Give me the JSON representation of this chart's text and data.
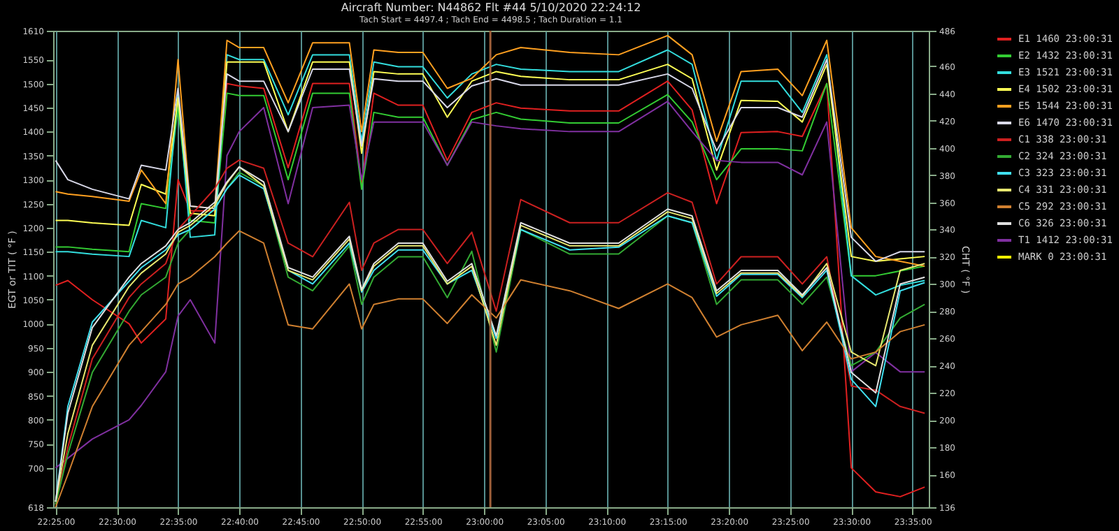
{
  "chart_data": {
    "type": "line",
    "title": "Aircraft Number: N44862 Flt #44 5/10/2020 22:24:12",
    "subtitle": "Tach Start = 4497.4 ; Tach End = 4498.5 ; Tach Duration = 1.1",
    "ylabel": "EGT or TIT ( °F )",
    "y2label": "CHT ( °F )",
    "x": [
      "2020-05-10T22:25",
      "2020-05-10T22:26",
      "2020-05-10T22:28",
      "2020-05-10T22:31",
      "2020-05-10T22:32",
      "2020-05-10T22:34",
      "2020-05-10T22:35",
      "2020-05-10T22:36",
      "2020-05-10T22:38",
      "2020-05-10T22:39",
      "2020-05-10T22:40",
      "2020-05-10T22:42",
      "2020-05-10T22:44",
      "2020-05-10T22:46",
      "2020-05-10T22:49",
      "2020-05-10T22:50",
      "2020-05-10T22:51",
      "2020-05-10T22:53",
      "2020-05-10T22:55",
      "2020-05-10T22:57",
      "2020-05-10T22:59",
      "2020-05-10T23:01",
      "2020-05-10T23:03",
      "2020-05-10T23:07",
      "2020-05-10T23:11",
      "2020-05-10T23:15",
      "2020-05-10T23:17",
      "2020-05-10T23:19",
      "2020-05-10T23:21",
      "2020-05-10T23:24",
      "2020-05-10T23:26",
      "2020-05-10T23:28",
      "2020-05-10T23:30",
      "2020-05-10T23:32",
      "2020-05-10T23:34",
      "2020-05-10T23:36"
    ],
    "xlim": [
      "2020-05-10T22:24:48",
      "2020-05-10T23:36:20"
    ],
    "xticks": [
      {
        "value": "2020-05-10T22:25",
        "label": "22:25:00"
      },
      {
        "value": "2020-05-10T22:30",
        "label": "22:30:00"
      },
      {
        "value": "2020-05-10T22:35",
        "label": "22:35:00"
      },
      {
        "value": "2020-05-10T22:40",
        "label": "22:40:00"
      },
      {
        "value": "2020-05-10T22:45",
        "label": "22:45:00"
      },
      {
        "value": "2020-05-10T22:50",
        "label": "22:50:00"
      },
      {
        "value": "2020-05-10T22:55",
        "label": "22:55:00"
      },
      {
        "value": "2020-05-10T23:00",
        "label": "23:00:00"
      },
      {
        "value": "2020-05-10T23:05",
        "label": "23:05:00"
      },
      {
        "value": "2020-05-10T23:10",
        "label": "23:10:00"
      },
      {
        "value": "2020-05-10T23:15",
        "label": "23:15:00"
      },
      {
        "value": "2020-05-10T23:20",
        "label": "23:20:00"
      },
      {
        "value": "2020-05-10T23:25",
        "label": "23:25:00"
      },
      {
        "value": "2020-05-10T23:30",
        "label": "23:30:00"
      },
      {
        "value": "2020-05-10T23:35",
        "label": "23:35:00"
      }
    ],
    "ylim": [
      618,
      1610
    ],
    "yticks": [
      618,
      700,
      750,
      800,
      850,
      900,
      950,
      1000,
      1050,
      1100,
      1150,
      1200,
      1250,
      1300,
      1350,
      1400,
      1450,
      1500,
      1550,
      1610
    ],
    "y2lim": [
      136,
      486
    ],
    "y2ticks": [
      136,
      160,
      180,
      200,
      220,
      240,
      260,
      280,
      300,
      320,
      340,
      360,
      380,
      400,
      420,
      440,
      460,
      486
    ],
    "grid": "x",
    "legend": "right",
    "ref_lines": [
      {
        "axis": "x",
        "value": "2020-05-10T23:00:31",
        "color": "#a0603a"
      }
    ],
    "series": [
      {
        "name": "E1 1460 23:00:31",
        "color": "#e02020",
        "values": [
          1080,
          1090,
          1050,
          1000,
          960,
          1010,
          1300,
          1235,
          1235,
          1500,
          1495,
          1490,
          1325,
          1500,
          1500,
          1290,
          1480,
          1455,
          1455,
          1340,
          1440,
          1460,
          1449,
          1443,
          1443,
          1505,
          1445,
          1250,
          1398,
          1400,
          1390,
          1500,
          700,
          650,
          640,
          660
        ]
      },
      {
        "name": "E2 1432 23:00:31",
        "color": "#33cc33",
        "values": [
          1160,
          1160,
          1155,
          1150,
          1250,
          1240,
          1450,
          1215,
          1210,
          1480,
          1475,
          1475,
          1300,
          1480,
          1480,
          1280,
          1440,
          1430,
          1430,
          1330,
          1425,
          1440,
          1426,
          1418,
          1418,
          1477,
          1420,
          1300,
          1364,
          1364,
          1360,
          1500,
          1100,
          1100,
          1110,
          1120
        ]
      },
      {
        "name": "E3 1521 23:00:31",
        "color": "#33dddd",
        "values": [
          1150,
          1150,
          1145,
          1140,
          1215,
          1200,
          1480,
          1180,
          1185,
          1560,
          1550,
          1550,
          1435,
          1560,
          1560,
          1380,
          1545,
          1535,
          1535,
          1470,
          1520,
          1540,
          1530,
          1525,
          1525,
          1570,
          1540,
          1340,
          1505,
          1505,
          1440,
          1560,
          1100,
          1060,
          1080,
          1090
        ]
      },
      {
        "name": "E4 1502 23:00:31",
        "color": "#ffff55",
        "values": [
          1215,
          1215,
          1210,
          1205,
          1290,
          1270,
          1470,
          1230,
          1225,
          1545,
          1545,
          1545,
          1400,
          1545,
          1545,
          1355,
          1525,
          1520,
          1520,
          1430,
          1505,
          1525,
          1515,
          1508,
          1508,
          1540,
          1510,
          1320,
          1465,
          1463,
          1420,
          1540,
          1140,
          1130,
          1135,
          1140
        ]
      },
      {
        "name": "E5 1544 23:00:31",
        "color": "#ffa020",
        "values": [
          1275,
          1270,
          1265,
          1255,
          1320,
          1250,
          1550,
          1245,
          1240,
          1590,
          1575,
          1575,
          1460,
          1585,
          1585,
          1400,
          1570,
          1565,
          1565,
          1490,
          1511,
          1560,
          1575,
          1565,
          1560,
          1600,
          1560,
          1380,
          1525,
          1530,
          1475,
          1590,
          1200,
          1140,
          1130,
          1120
        ]
      },
      {
        "name": "E6 1470 23:00:31",
        "color": "#d8d8e8",
        "values": [
          1340,
          1300,
          1280,
          1260,
          1330,
          1320,
          1490,
          1245,
          1240,
          1520,
          1505,
          1505,
          1400,
          1530,
          1530,
          1370,
          1510,
          1505,
          1505,
          1450,
          1495,
          1510,
          1497,
          1497,
          1497,
          1520,
          1490,
          1360,
          1450,
          1450,
          1430,
          1550,
          1180,
          1130,
          1150,
          1150
        ]
      },
      {
        "name": "C1 338 23:00:31",
        "color": "#cc2020",
        "axis": "y2",
        "values": [
          138,
          180,
          245,
          290,
          300,
          315,
          340,
          350,
          370,
          385,
          391,
          385,
          330,
          320,
          360,
          310,
          330,
          340,
          340,
          315,
          338,
          280,
          362,
          345,
          345,
          367,
          360,
          300,
          320,
          320,
          300,
          320,
          225,
          222,
          210,
          205
        ]
      },
      {
        "name": "C2 324 23:00:31",
        "color": "#33aa33",
        "axis": "y2",
        "values": [
          138,
          175,
          235,
          280,
          292,
          305,
          330,
          340,
          355,
          370,
          382,
          372,
          305,
          295,
          328,
          285,
          305,
          320,
          320,
          290,
          324,
          250,
          340,
          322,
          322,
          350,
          345,
          285,
          303,
          303,
          285,
          305,
          240,
          250,
          275,
          285
        ]
      },
      {
        "name": "C3 323 23:00:31",
        "color": "#40e0f0",
        "axis": "y2",
        "values": [
          140,
          210,
          272,
          302,
          312,
          325,
          336,
          340,
          355,
          370,
          380,
          370,
          310,
          300,
          330,
          294,
          310,
          325,
          325,
          300,
          310,
          260,
          340,
          325,
          327,
          350,
          345,
          291,
          307,
          307,
          290,
          310,
          230,
          210,
          295,
          301
        ]
      },
      {
        "name": "C4 331 23:00:31",
        "color": "#e8e870",
        "axis": "y2",
        "values": [
          140,
          190,
          255,
          298,
          308,
          322,
          338,
          343,
          358,
          374,
          386,
          372,
          310,
          303,
          333,
          295,
          313,
          328,
          328,
          300,
          313,
          255,
          343,
          328,
          328,
          353,
          348,
          293,
          308,
          308,
          291,
          315,
          250,
          240,
          310,
          315
        ]
      },
      {
        "name": "C5 292 23:00:31",
        "color": "#d08030",
        "axis": "y2",
        "values": [
          136,
          160,
          210,
          255,
          265,
          285,
          300,
          305,
          320,
          330,
          339,
          330,
          270,
          267,
          300,
          267,
          285,
          289,
          289,
          271,
          292,
          275,
          303,
          295,
          282,
          300,
          290,
          261,
          270,
          277,
          251,
          272,
          245,
          250,
          265,
          270
        ]
      },
      {
        "name": "C6 326 23:00:31",
        "color": "#e0e0e0",
        "axis": "y2",
        "values": [
          140,
          205,
          268,
          305,
          315,
          328,
          340,
          345,
          360,
          375,
          386,
          375,
          312,
          305,
          335,
          296,
          315,
          330,
          330,
          302,
          315,
          262,
          345,
          330,
          330,
          355,
          350,
          295,
          310,
          310,
          292,
          312,
          235,
          220,
          300,
          305
        ]
      },
      {
        "name": "T1 1412 23:00:31",
        "color": "#8030a0",
        "values": [
          700,
          720,
          760,
          800,
          830,
          900,
          1016,
          1050,
          960,
          1350,
          1400,
          1450,
          1250,
          1450,
          1455,
          1300,
          1420,
          1420,
          1420,
          1330,
          1420,
          1412,
          1406,
          1400,
          1400,
          1463,
          1400,
          1340,
          1336,
          1336,
          1310,
          1420,
          900,
          940,
          900,
          900
        ]
      },
      {
        "name": "MARK 0 23:00:31",
        "color": "#ffff00",
        "values": [
          null,
          null,
          null,
          null,
          null,
          null,
          null,
          null,
          null,
          null,
          null,
          null,
          null,
          null,
          null,
          null,
          null,
          null,
          null,
          null,
          null,
          null,
          null,
          null,
          null,
          null,
          null,
          null,
          null,
          null,
          null,
          null,
          null,
          null,
          null,
          null
        ]
      }
    ]
  }
}
